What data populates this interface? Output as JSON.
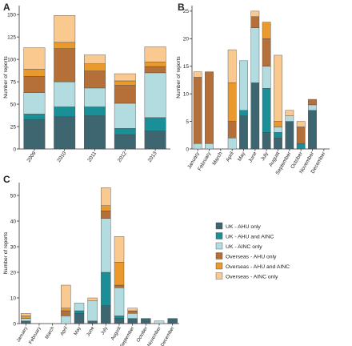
{
  "colors": {
    "uk_ahu": "#3d6670",
    "uk_ahu_ainc": "#1b8f97",
    "uk_ainc": "#b3dce0",
    "os_ahu": "#b5703a",
    "os_ahu_ainc": "#ea9a2c",
    "os_ainc": "#f9c990",
    "edge": "#444444"
  },
  "legend": {
    "items": [
      {
        "label": "UK - AHU only",
        "color": "#3d6670"
      },
      {
        "label": "UK - AHU and AINC",
        "color": "#1b8f97"
      },
      {
        "label": "UK - AINC only",
        "color": "#b3dce0"
      },
      {
        "label": "Overseas - AHU only",
        "color": "#b5703a"
      },
      {
        "label": "Overseas - AHU and AINC",
        "color": "#ea9a2c"
      },
      {
        "label": "Overseas - AINC only",
        "color": "#f9c990"
      }
    ]
  },
  "chart_data": [
    {
      "panel": "A",
      "type": "bar",
      "stacked": true,
      "ylabel": "Number of reports",
      "ylim": [
        0,
        160
      ],
      "yticks": [
        0,
        25,
        50,
        75,
        100,
        125,
        150
      ],
      "categories": [
        "2009",
        "2010",
        "2011",
        "2012",
        "2013"
      ],
      "series": [
        {
          "name": "UK - AHU only",
          "values": [
            33,
            36,
            37,
            16,
            20
          ]
        },
        {
          "name": "UK - AHU and AINC",
          "values": [
            6,
            11,
            10,
            7,
            15
          ]
        },
        {
          "name": "UK - AINC only",
          "values": [
            24,
            28,
            21,
            28,
            50
          ]
        },
        {
          "name": "Overseas - AHU only",
          "values": [
            18,
            37,
            19,
            20,
            7
          ]
        },
        {
          "name": "Overseas - AHU and AINC",
          "values": [
            8,
            7,
            8,
            5,
            5
          ]
        },
        {
          "name": "Overseas - AINC only",
          "values": [
            24,
            30,
            10,
            8,
            17
          ]
        }
      ]
    },
    {
      "panel": "B",
      "type": "bar",
      "stacked": true,
      "ylabel": "Number of reports",
      "ylim": [
        0,
        26
      ],
      "yticks": [
        0,
        5,
        10,
        15,
        20,
        25
      ],
      "categories": [
        "January",
        "February",
        "March",
        "April",
        "May",
        "June",
        "July",
        "August",
        "September",
        "October",
        "November",
        "December"
      ],
      "series": [
        {
          "name": "UK - AHU only",
          "values": [
            0,
            0,
            0,
            0,
            6,
            12,
            3,
            2,
            5,
            0,
            7,
            0
          ]
        },
        {
          "name": "UK - AHU and AINC",
          "values": [
            0,
            0,
            0,
            0,
            1,
            0,
            8,
            1,
            0,
            1,
            0,
            0
          ]
        },
        {
          "name": "UK - AINC only",
          "values": [
            1,
            1,
            0,
            2,
            9,
            10,
            4,
            1,
            1,
            0,
            1,
            0
          ]
        },
        {
          "name": "Overseas - AHU only",
          "values": [
            12,
            13,
            0,
            3,
            0,
            2,
            5,
            0,
            0,
            3,
            1,
            0
          ]
        },
        {
          "name": "Overseas - AHU and AINC",
          "values": [
            0,
            0,
            0,
            7,
            0,
            0,
            3,
            1,
            0,
            0,
            0,
            0
          ]
        },
        {
          "name": "Overseas - AINC only",
          "values": [
            1,
            0,
            0,
            6,
            0,
            1,
            0,
            12,
            1,
            1,
            0,
            0
          ]
        }
      ]
    },
    {
      "panel": "C",
      "type": "bar",
      "stacked": true,
      "ylabel": "Number of reports",
      "ylim": [
        0,
        55
      ],
      "yticks": [
        0,
        10,
        20,
        30,
        40,
        50
      ],
      "categories": [
        "January",
        "February",
        "March",
        "April",
        "May",
        "June",
        "July",
        "August",
        "September",
        "October",
        "November",
        "December"
      ],
      "series": [
        {
          "name": "UK - AHU only",
          "values": [
            1,
            0,
            0,
            0,
            4,
            1,
            7,
            2,
            2,
            2,
            0,
            2
          ]
        },
        {
          "name": "UK - AHU and AINC",
          "values": [
            0,
            0,
            0,
            0,
            1,
            0,
            13,
            1,
            0,
            0,
            0,
            0
          ]
        },
        {
          "name": "UK - AINC only",
          "values": [
            1,
            0,
            0,
            3,
            3,
            8,
            21,
            11,
            2,
            0,
            1,
            0
          ]
        },
        {
          "name": "Overseas - AHU only",
          "values": [
            0,
            0,
            0,
            2,
            0,
            0,
            3,
            1,
            1,
            0,
            0,
            0
          ]
        },
        {
          "name": "Overseas - AHU and AINC",
          "values": [
            1,
            0,
            0,
            1,
            0,
            0,
            2,
            9,
            0,
            0,
            0,
            0
          ]
        },
        {
          "name": "Overseas - AINC only",
          "values": [
            1,
            0,
            0,
            9,
            0,
            1,
            7,
            10,
            1,
            0,
            0,
            0
          ]
        }
      ]
    }
  ]
}
